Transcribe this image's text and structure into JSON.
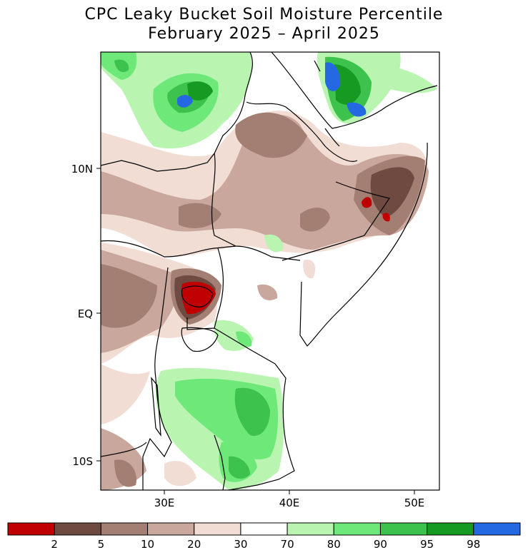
{
  "title": {
    "line1": "CPC Leaky Bucket Soil Moisture Percentile",
    "line2": "February 2025 – April 2025"
  },
  "axes": {
    "x_ticks": [
      {
        "lon": 30,
        "label": "30E"
      },
      {
        "lon": 40,
        "label": "40E"
      },
      {
        "lon": 50,
        "label": "50E"
      }
    ],
    "y_ticks": [
      {
        "lat": 10,
        "label": "10N"
      },
      {
        "lat": 0,
        "label": "EQ"
      },
      {
        "lat": -10,
        "label": "10S"
      }
    ],
    "lon_range": [
      25,
      52
    ],
    "lat_range": [
      -12.2,
      18.2
    ]
  },
  "legend": {
    "bins": [
      {
        "color": "#c00000"
      },
      {
        "color": "#6e4a40"
      },
      {
        "color": "#a37e73"
      },
      {
        "color": "#c9a79c"
      },
      {
        "color": "#f1ddd4"
      },
      {
        "color": "#ffffff"
      },
      {
        "color": "#b9f5b0"
      },
      {
        "color": "#6fe87a"
      },
      {
        "color": "#3cc24d"
      },
      {
        "color": "#169a22"
      },
      {
        "color": "#2469e2"
      }
    ],
    "labels": [
      "2",
      "5",
      "10",
      "20",
      "30",
      "70",
      "80",
      "90",
      "95",
      "98"
    ]
  }
}
